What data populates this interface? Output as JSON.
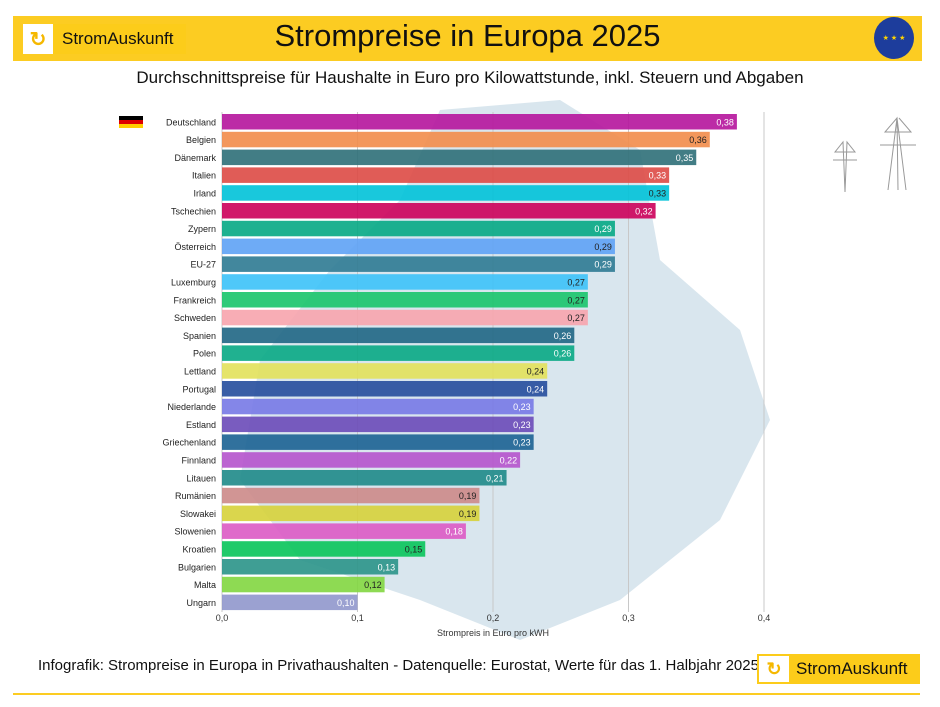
{
  "header": {
    "logo_text": "StromAuskunft",
    "title": "Strompreise in Europa 2025",
    "eu_flag_icon": "eu-flag-icon"
  },
  "subtitle": "Durchschnittspreise für Haushalte in Euro pro Kilowattstunde, inkl. Steuern und Abgaben",
  "footer": {
    "text": "Infografik: Strompreise in Europa in Privathaushalten -  Datenquelle: Eurostat, Werte für das 1. Halbjahr 2025",
    "logo_text": "StromAuskunft"
  },
  "chart_data": {
    "type": "bar",
    "orientation": "horizontal",
    "xlabel": "Strompreis in Euro pro kWH",
    "xlim": [
      0,
      0.4
    ],
    "xticks": [
      "0,0",
      "0,1",
      "0,2",
      "0,3",
      "0,4"
    ],
    "grid": true,
    "highlight_flag": "germany-flag-icon",
    "categories": [
      "Deutschland",
      "Belgien",
      "Dänemark",
      "Italien",
      "Irland",
      "Tschechien",
      "Zypern",
      "Österreich",
      "EU-27",
      "Luxemburg",
      "Frankreich",
      "Schweden",
      "Spanien",
      "Polen",
      "Lettland",
      "Portugal",
      "Niederlande",
      "Estland",
      "Griechenland",
      "Finnland",
      "Litauen",
      "Rumänien",
      "Slowakei",
      "Slowenien",
      "Kroatien",
      "Bulgarien",
      "Malta",
      "Ungarn"
    ],
    "values": [
      0.38,
      0.36,
      0.35,
      0.33,
      0.33,
      0.32,
      0.29,
      0.29,
      0.29,
      0.27,
      0.27,
      0.27,
      0.26,
      0.26,
      0.24,
      0.24,
      0.23,
      0.23,
      0.23,
      0.22,
      0.21,
      0.19,
      0.19,
      0.18,
      0.15,
      0.13,
      0.12,
      0.1
    ],
    "labels": [
      "0,38",
      "0,36",
      "0,35",
      "0,33",
      "0,33",
      "0,32",
      "0,29",
      "0,29",
      "0,29",
      "0,27",
      "0,27",
      "0,27",
      "0,26",
      "0,26",
      "0,24",
      "0,24",
      "0,23",
      "0,23",
      "0,23",
      "0,22",
      "0,21",
      "0,19",
      "0,19",
      "0,18",
      "0,15",
      "0,13",
      "0,12",
      "0,10"
    ],
    "colors": [
      "#b5149c",
      "#f28c4a",
      "#2e6f78",
      "#dd4a45",
      "#00c2d8",
      "#cc005a",
      "#06a884",
      "#5ea2f5",
      "#2d7a92",
      "#3cc2f8",
      "#18c46a",
      "#f7a4ad",
      "#1f6684",
      "#08a884",
      "#e2e15a",
      "#254c9c",
      "#7779e6",
      "#6a4ab8",
      "#1b6292",
      "#b553cc",
      "#1e8a88",
      "#cc8a88",
      "#d6d23a",
      "#db5ac4",
      "#08c45a",
      "#2a9488",
      "#82d640",
      "#9097cc"
    ],
    "label_colors": [
      "#fff",
      "#222",
      "#fff",
      "#fff",
      "#222",
      "#fff",
      "#fff",
      "#222",
      "#fff",
      "#222",
      "#222",
      "#222",
      "#fff",
      "#fff",
      "#222",
      "#fff",
      "#fff",
      "#fff",
      "#fff",
      "#fff",
      "#fff",
      "#222",
      "#222",
      "#fff",
      "#222",
      "#fff",
      "#222",
      "#fff"
    ]
  }
}
